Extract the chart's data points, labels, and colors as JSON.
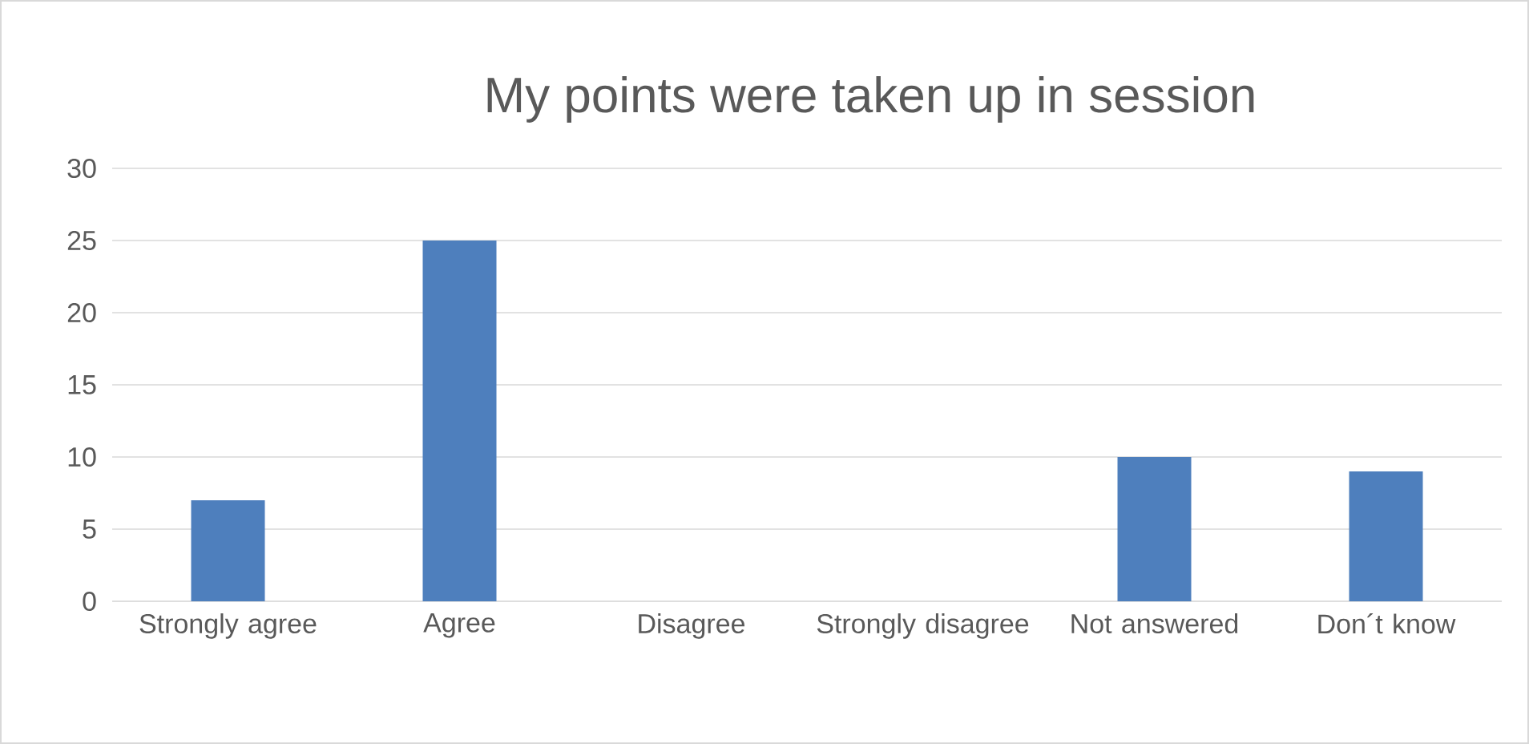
{
  "chart_data": {
    "type": "bar",
    "title": "My points were taken up in session",
    "categories": [
      "Strongly agree",
      "Agree",
      "Disagree",
      "Strongly disagree",
      "Not answered",
      "Don´t know"
    ],
    "values": [
      7,
      25,
      0,
      0,
      10,
      9
    ],
    "color": "#4e7fbd",
    "ylim": [
      0,
      30
    ],
    "yticks": [
      0,
      5,
      10,
      15,
      20,
      25,
      30
    ],
    "grid": "y"
  }
}
